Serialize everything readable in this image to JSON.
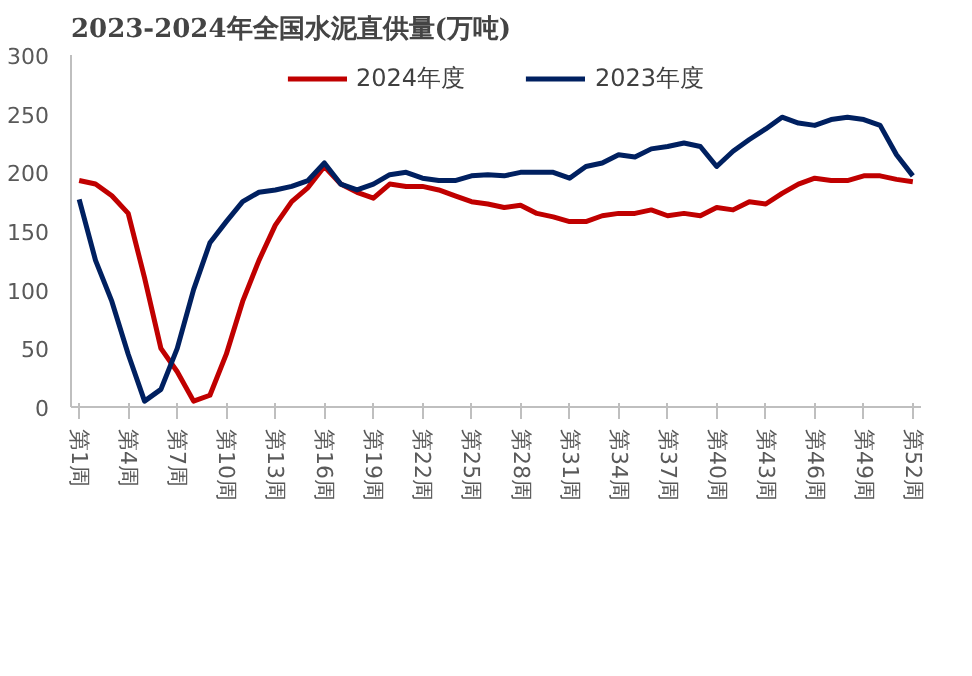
{
  "chart_data": {
    "type": "line",
    "title": "2023-2024年全国水泥直供量(万吨)",
    "categories": [
      "第1周",
      null,
      null,
      "第4周",
      null,
      null,
      "第7周",
      null,
      null,
      "第10周",
      null,
      null,
      "第13周",
      null,
      null,
      "第16周",
      null,
      null,
      "第19周",
      null,
      null,
      "第22周",
      null,
      null,
      "第25周",
      null,
      null,
      "第28周",
      null,
      null,
      "第31周",
      null,
      null,
      "第34周",
      null,
      null,
      "第37周",
      null,
      null,
      "第40周",
      null,
      null,
      "第43周",
      null,
      null,
      "第46周",
      null,
      null,
      "第49周",
      null,
      null,
      "第52周"
    ],
    "series": [
      {
        "name": "2024年度",
        "color": "#c00000",
        "values": [
          193,
          190,
          180,
          165,
          110,
          50,
          30,
          5,
          10,
          45,
          90,
          125,
          155,
          175,
          187,
          205,
          190,
          183,
          178,
          190,
          188,
          188,
          185,
          180,
          175,
          173,
          170,
          172,
          165,
          162,
          158,
          158,
          163,
          165,
          165,
          168,
          163,
          165,
          163,
          170,
          168,
          175,
          173,
          182,
          190,
          195,
          193,
          193,
          197,
          197,
          194,
          192
        ]
      },
      {
        "name": "2023年度",
        "color": "#002060",
        "values": [
          177,
          125,
          90,
          45,
          5,
          15,
          50,
          100,
          140,
          158,
          175,
          183,
          185,
          188,
          193,
          208,
          190,
          185,
          190,
          198,
          200,
          195,
          193,
          193,
          197,
          198,
          197,
          200,
          200,
          200,
          195,
          205,
          208,
          215,
          213,
          220,
          222,
          225,
          222,
          205,
          218,
          228,
          237,
          247,
          242,
          240,
          245,
          247,
          245,
          240,
          215,
          197
        ]
      }
    ],
    "ylim": [
      0,
      300
    ],
    "yticks": [
      0,
      50,
      100,
      150,
      200,
      250,
      300
    ],
    "grid": false,
    "legend": "top"
  }
}
